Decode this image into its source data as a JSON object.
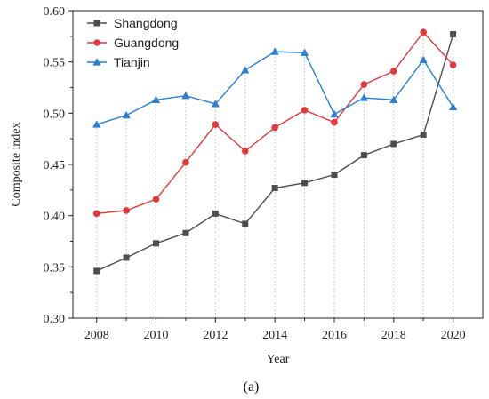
{
  "chart_data": {
    "type": "line",
    "x": [
      2008,
      2009,
      2010,
      2011,
      2012,
      2013,
      2014,
      2015,
      2016,
      2017,
      2018,
      2019,
      2020
    ],
    "series": [
      {
        "name": "Shangdong",
        "color": "#4d4d4d",
        "marker": "square",
        "values": [
          0.346,
          0.359,
          0.373,
          0.383,
          0.402,
          0.392,
          0.427,
          0.432,
          0.44,
          0.459,
          0.47,
          0.479,
          0.577
        ]
      },
      {
        "name": "Guangdong",
        "color": "#e0393e",
        "marker": "circle",
        "values": [
          0.402,
          0.405,
          0.416,
          0.452,
          0.489,
          0.463,
          0.486,
          0.503,
          0.491,
          0.528,
          0.541,
          0.579,
          0.547
        ]
      },
      {
        "name": "Tianjin",
        "color": "#2a7fd4",
        "marker": "triangle",
        "values": [
          0.489,
          0.498,
          0.513,
          0.517,
          0.509,
          0.542,
          0.56,
          0.559,
          0.499,
          0.515,
          0.513,
          0.552,
          0.506
        ]
      }
    ],
    "xlabel": "Year",
    "ylabel": "Composite index",
    "xticks": [
      "2008",
      "2010",
      "2012",
      "2014",
      "2016",
      "2018",
      "2020"
    ],
    "yticks": [
      "0.30",
      "0.35",
      "0.40",
      "0.45",
      "0.50",
      "0.55",
      "0.60"
    ],
    "ylim": [
      0.3,
      0.6
    ],
    "xlim": [
      2007.2,
      2021
    ],
    "grid": "vertical dotted lines at each year",
    "legend_position": "top-left",
    "caption": "(a)"
  }
}
